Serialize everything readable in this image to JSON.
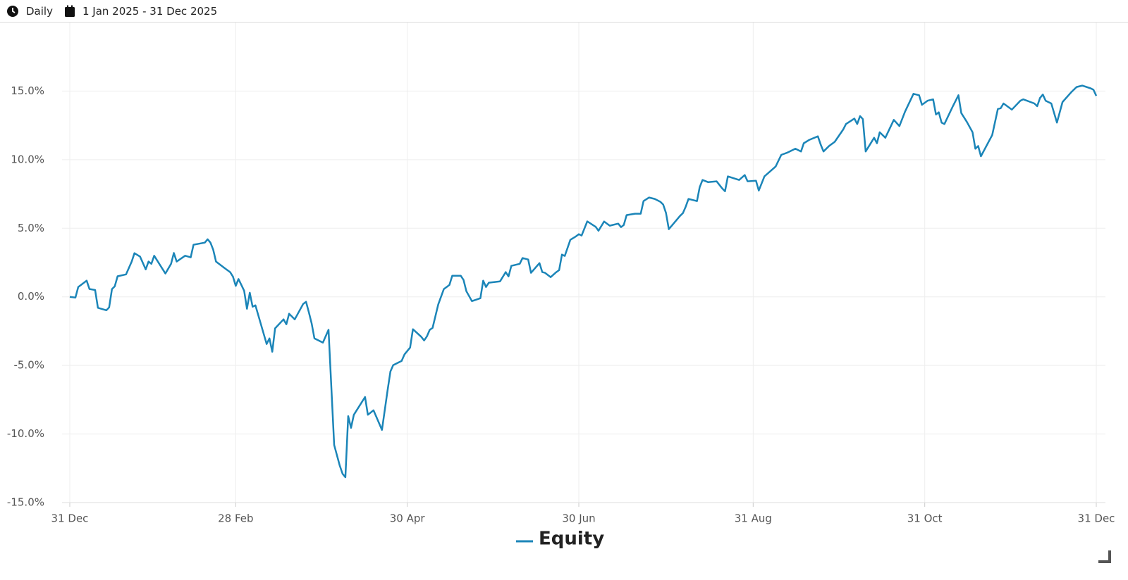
{
  "toolbar": {
    "frequency": "Daily",
    "date_range": "1 Jan 2025 - 31 Dec 2025"
  },
  "chart_data": {
    "type": "line",
    "x": [
      "2024-12-31",
      "2025-01-02",
      "2025-01-03",
      "2025-01-06",
      "2025-01-07",
      "2025-01-09",
      "2025-01-10",
      "2025-01-13",
      "2025-01-14",
      "2025-01-15",
      "2025-01-16",
      "2025-01-17",
      "2025-01-20",
      "2025-01-22",
      "2025-01-23",
      "2025-01-25",
      "2025-01-27",
      "2025-01-28",
      "2025-01-29",
      "2025-01-30",
      "2025-02-03",
      "2025-02-05",
      "2025-02-06",
      "2025-02-07",
      "2025-02-10",
      "2025-02-12",
      "2025-02-13",
      "2025-02-17",
      "2025-02-18",
      "2025-02-19",
      "2025-02-20",
      "2025-02-21",
      "2025-02-24",
      "2025-02-26",
      "2025-02-27",
      "2025-02-28",
      "2025-03-01",
      "2025-03-03",
      "2025-03-04",
      "2025-03-05",
      "2025-03-06",
      "2025-03-07",
      "2025-03-11",
      "2025-03-12",
      "2025-03-13",
      "2025-03-14",
      "2025-03-17",
      "2025-03-18",
      "2025-03-19",
      "2025-03-21",
      "2025-03-24",
      "2025-03-25",
      "2025-03-26",
      "2025-03-27",
      "2025-03-28",
      "2025-03-31",
      "2025-04-02",
      "2025-04-04",
      "2025-04-06",
      "2025-04-07",
      "2025-04-08",
      "2025-04-09",
      "2025-04-10",
      "2025-04-11",
      "2025-04-15",
      "2025-04-16",
      "2025-04-18",
      "2025-04-21",
      "2025-04-23",
      "2025-04-24",
      "2025-04-25",
      "2025-04-28",
      "2025-04-29",
      "2025-05-01",
      "2025-05-02",
      "2025-05-05",
      "2025-05-06",
      "2025-05-07",
      "2025-05-08",
      "2025-05-09",
      "2025-05-11",
      "2025-05-13",
      "2025-05-15",
      "2025-05-16",
      "2025-05-19",
      "2025-05-20",
      "2025-05-21",
      "2025-05-23",
      "2025-05-26",
      "2025-05-27",
      "2025-05-28",
      "2025-05-29",
      "2025-06-02",
      "2025-06-04",
      "2025-06-05",
      "2025-06-06",
      "2025-06-09",
      "2025-06-10",
      "2025-06-12",
      "2025-06-13",
      "2025-06-16",
      "2025-06-17",
      "2025-06-18",
      "2025-06-20",
      "2025-06-22",
      "2025-06-23",
      "2025-06-24",
      "2025-06-25",
      "2025-06-27",
      "2025-06-29",
      "2025-06-30",
      "2025-07-01",
      "2025-07-03",
      "2025-07-06",
      "2025-07-07",
      "2025-07-09",
      "2025-07-11",
      "2025-07-14",
      "2025-07-15",
      "2025-07-16",
      "2025-07-17",
      "2025-07-20",
      "2025-07-22",
      "2025-07-23",
      "2025-07-25",
      "2025-07-27",
      "2025-07-29",
      "2025-07-30",
      "2025-07-31",
      "2025-08-01",
      "2025-08-05",
      "2025-08-06",
      "2025-08-07",
      "2025-08-08",
      "2025-08-11",
      "2025-08-12",
      "2025-08-13",
      "2025-08-15",
      "2025-08-18",
      "2025-08-20",
      "2025-08-21",
      "2025-08-22",
      "2025-08-26",
      "2025-08-28",
      "2025-08-29",
      "2025-09-01",
      "2025-09-02",
      "2025-09-04",
      "2025-09-06",
      "2025-09-08",
      "2025-09-10",
      "2025-09-12",
      "2025-09-15",
      "2025-09-17",
      "2025-09-18",
      "2025-09-20",
      "2025-09-23",
      "2025-09-24",
      "2025-09-25",
      "2025-09-27",
      "2025-09-29",
      "2025-10-02",
      "2025-10-03",
      "2025-10-06",
      "2025-10-07",
      "2025-10-08",
      "2025-10-09",
      "2025-10-10",
      "2025-10-13",
      "2025-10-14",
      "2025-10-15",
      "2025-10-17",
      "2025-10-20",
      "2025-10-22",
      "2025-10-24",
      "2025-10-27",
      "2025-10-29",
      "2025-10-30",
      "2025-11-01",
      "2025-11-03",
      "2025-11-04",
      "2025-11-05",
      "2025-11-06",
      "2025-11-07",
      "2025-11-10",
      "2025-11-12",
      "2025-11-13",
      "2025-11-15",
      "2025-11-17",
      "2025-11-18",
      "2025-11-19",
      "2025-11-20",
      "2025-11-24",
      "2025-11-26",
      "2025-11-27",
      "2025-11-28",
      "2025-12-01",
      "2025-12-04",
      "2025-12-05",
      "2025-12-09",
      "2025-12-10",
      "2025-12-11",
      "2025-12-12",
      "2025-12-13",
      "2025-12-15",
      "2025-12-17",
      "2025-12-19",
      "2025-12-22",
      "2025-12-24",
      "2025-12-26",
      "2025-12-29",
      "2025-12-30",
      "2025-12-31"
    ],
    "series": [
      {
        "name": "Equity",
        "color": "#1b85b8",
        "values": [
          0.0,
          -0.05,
          0.72,
          1.18,
          0.57,
          0.5,
          -0.8,
          -0.98,
          -0.77,
          0.56,
          0.77,
          1.5,
          1.64,
          2.57,
          3.18,
          2.93,
          2.0,
          2.57,
          2.41,
          3.0,
          1.7,
          2.4,
          3.2,
          2.57,
          3.0,
          2.88,
          3.8,
          3.95,
          4.2,
          3.95,
          3.44,
          2.57,
          2.1,
          1.8,
          1.48,
          0.8,
          1.3,
          0.44,
          -0.87,
          0.3,
          -0.72,
          -0.62,
          -3.44,
          -3.03,
          -4.0,
          -2.3,
          -1.64,
          -2.0,
          -1.23,
          -1.64,
          -0.51,
          -0.36,
          -1.13,
          -1.95,
          -3.03,
          -3.34,
          -2.4,
          -10.8,
          -12.3,
          -12.9,
          -13.15,
          -8.7,
          -9.55,
          -8.6,
          -7.3,
          -8.6,
          -8.27,
          -9.7,
          -6.8,
          -5.44,
          -4.98,
          -4.67,
          -4.2,
          -3.7,
          -2.36,
          -2.92,
          -3.18,
          -2.88,
          -2.4,
          -2.26,
          -0.56,
          0.56,
          0.87,
          1.54,
          1.54,
          1.23,
          0.41,
          -0.31,
          -0.1,
          1.18,
          0.72,
          1.03,
          1.13,
          1.8,
          1.49,
          2.26,
          2.41,
          2.83,
          2.72,
          1.75,
          2.46,
          1.8,
          1.75,
          1.44,
          1.8,
          1.95,
          3.08,
          2.98,
          4.16,
          4.41,
          4.57,
          4.47,
          5.5,
          5.1,
          4.82,
          5.49,
          5.19,
          5.34,
          5.08,
          5.24,
          5.96,
          6.06,
          6.06,
          6.98,
          7.24,
          7.14,
          6.93,
          6.73,
          6.11,
          4.93,
          5.9,
          6.1,
          6.57,
          7.14,
          6.98,
          8.0,
          8.52,
          8.36,
          8.42,
          7.9,
          7.7,
          8.78,
          8.52,
          8.88,
          8.42,
          8.47,
          7.75,
          8.78,
          9.14,
          9.5,
          10.35,
          10.5,
          10.8,
          10.6,
          11.2,
          11.45,
          11.7,
          11.1,
          10.6,
          11.0,
          11.3,
          12.2,
          12.6,
          13.0,
          12.6,
          13.18,
          12.96,
          10.6,
          11.6,
          11.2,
          12.0,
          11.6,
          12.9,
          12.45,
          13.5,
          14.8,
          14.7,
          14.0,
          14.3,
          14.4,
          13.3,
          13.45,
          12.7,
          12.6,
          13.9,
          14.7,
          13.4,
          12.75,
          12.0,
          10.8,
          11.0,
          10.25,
          11.8,
          13.7,
          13.75,
          14.1,
          13.65,
          14.3,
          14.4,
          14.1,
          13.9,
          14.5,
          14.75,
          14.3,
          14.1,
          12.7,
          14.2,
          14.9,
          15.3,
          15.4,
          15.2,
          15.1,
          14.65
        ]
      }
    ],
    "xlim": [
      "2024-12-31",
      "2025-12-31"
    ],
    "xticks": [
      {
        "value": "2024-12-31",
        "label": "31 Dec"
      },
      {
        "value": "2025-02-28",
        "label": "28 Feb"
      },
      {
        "value": "2025-04-30",
        "label": "30 Apr"
      },
      {
        "value": "2025-06-30",
        "label": "30 Jun"
      },
      {
        "value": "2025-08-31",
        "label": "31 Aug"
      },
      {
        "value": "2025-10-31",
        "label": "31 Oct"
      },
      {
        "value": "2025-12-31",
        "label": "31 Dec"
      }
    ],
    "ylim": [
      -15,
      20
    ],
    "yticks": [
      {
        "value": -15,
        "label": "-15.0%"
      },
      {
        "value": -10,
        "label": "-10.0%"
      },
      {
        "value": -5,
        "label": "-5.0%"
      },
      {
        "value": 0,
        "label": "0.0%"
      },
      {
        "value": 5,
        "label": "5.0%"
      },
      {
        "value": 10,
        "label": "10.0%"
      },
      {
        "value": 15,
        "label": "15.0%"
      }
    ],
    "grid": true
  }
}
